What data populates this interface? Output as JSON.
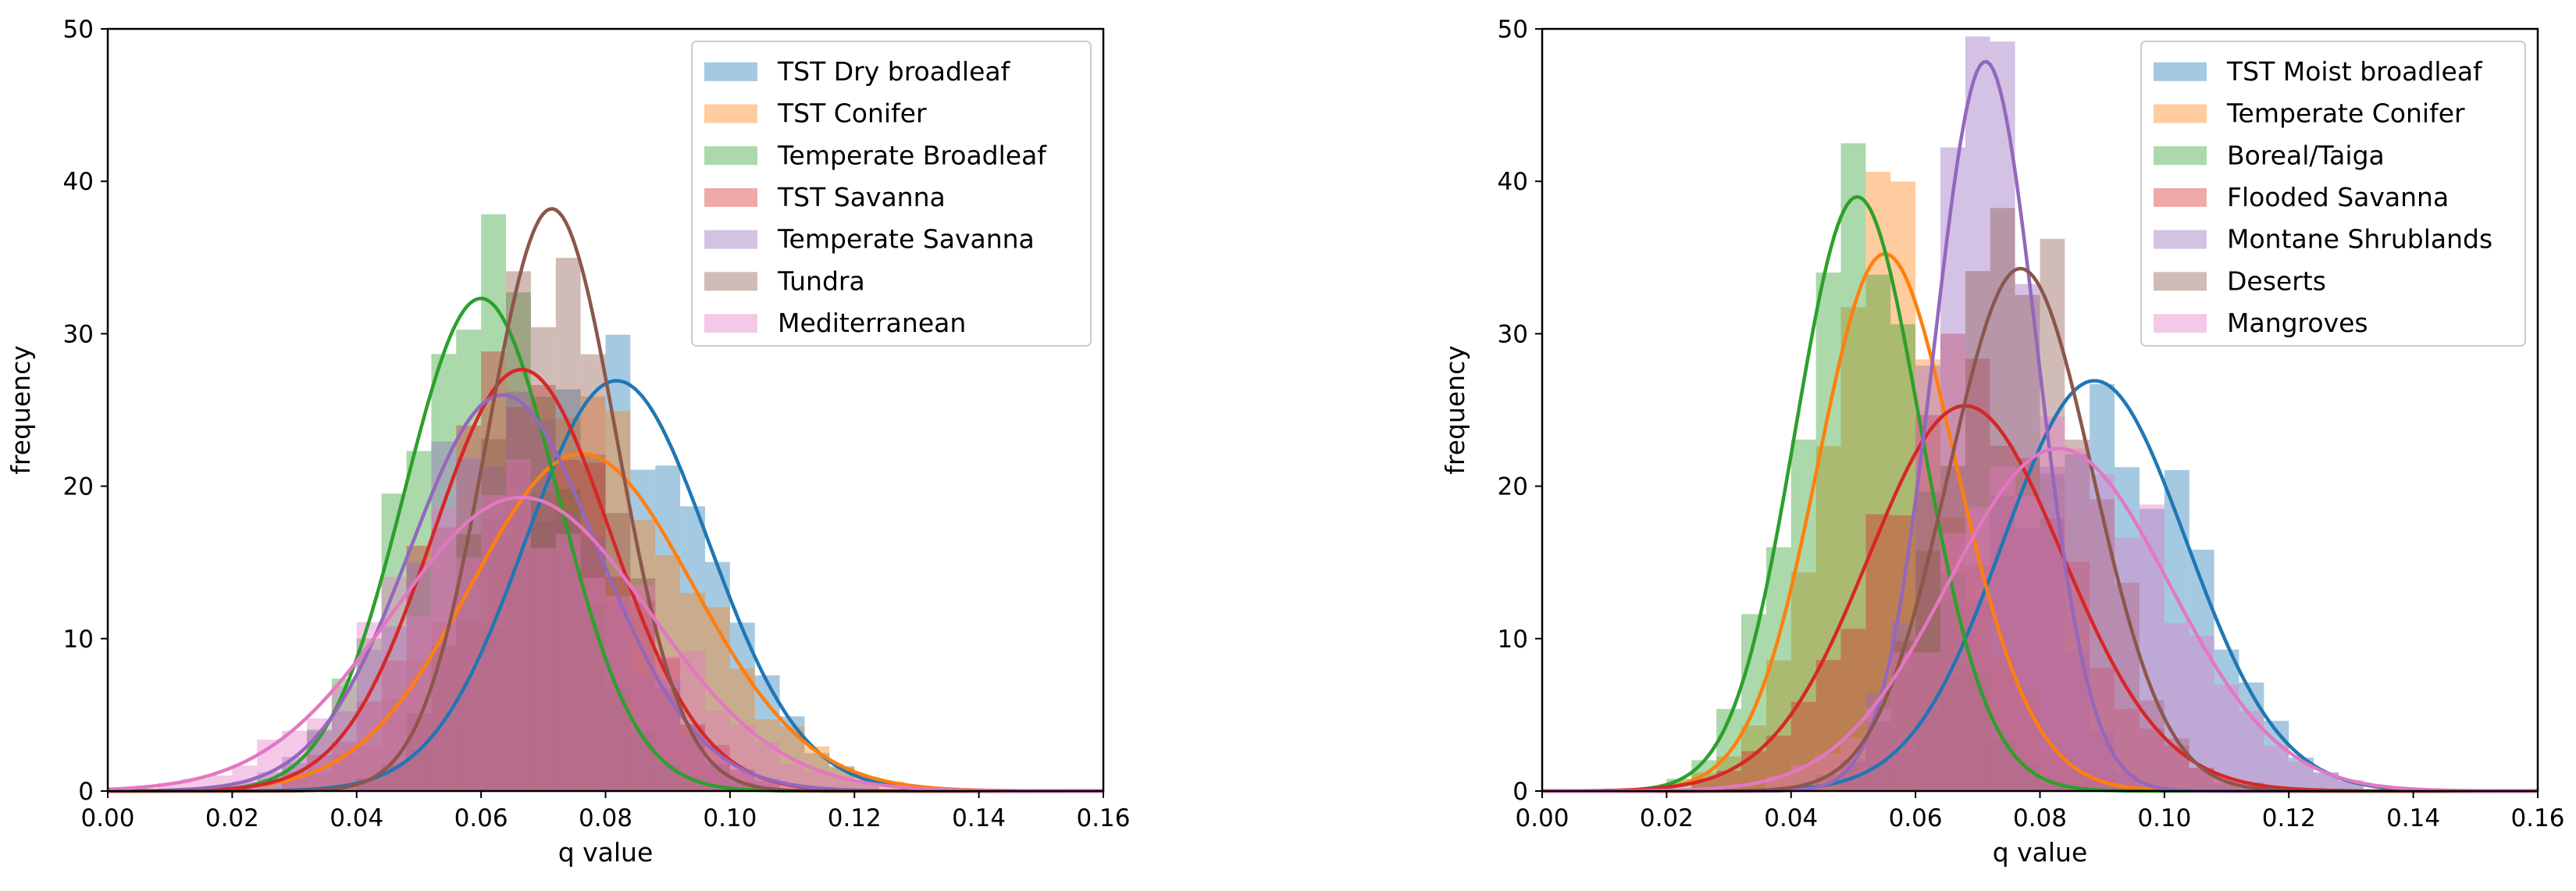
{
  "chart_data": [
    {
      "type": "histogram+kde",
      "xlabel": "q value",
      "ylabel": "frequency",
      "xlim": [
        0.0,
        0.16
      ],
      "ylim": [
        0,
        50
      ],
      "xticks": [
        "0.00",
        "0.02",
        "0.04",
        "0.06",
        "0.08",
        "0.10",
        "0.12",
        "0.14",
        "0.16"
      ],
      "yticks": [
        "0",
        "10",
        "20",
        "30",
        "40",
        "50"
      ],
      "legend_position": "top-right",
      "series": [
        {
          "name": "TST Dry broadleaf",
          "color": "#1f77b4",
          "mean": 0.076,
          "sd": 0.016,
          "skew": 0.5,
          "seed": 11
        },
        {
          "name": "TST Conifer",
          "color": "#ff7f0e",
          "mean": 0.068,
          "sd": 0.02,
          "skew": 0.6,
          "seed": 23
        },
        {
          "name": "Temperate Broadleaf",
          "color": "#2ca02c",
          "mean": 0.056,
          "sd": 0.013,
          "skew": 0.4,
          "seed": 37
        },
        {
          "name": "TST Savanna",
          "color": "#d62728",
          "mean": 0.06,
          "sd": 0.016,
          "skew": 0.6,
          "seed": 41
        },
        {
          "name": "Temperate Savanna",
          "color": "#9467bd",
          "mean": 0.055,
          "sd": 0.018,
          "skew": 0.8,
          "seed": 53
        },
        {
          "name": "Tundra",
          "color": "#8c564b",
          "mean": 0.068,
          "sd": 0.011,
          "skew": 0.4,
          "seed": 67
        },
        {
          "name": "Mediterranean",
          "color": "#e377c2",
          "mean": 0.063,
          "sd": 0.021,
          "skew": 0.2,
          "seed": 79
        }
      ]
    },
    {
      "type": "histogram+kde",
      "xlabel": "q value",
      "ylabel": "frequency",
      "xlim": [
        0.0,
        0.16
      ],
      "ylim": [
        0,
        50
      ],
      "xticks": [
        "0.00",
        "0.02",
        "0.04",
        "0.06",
        "0.08",
        "0.10",
        "0.12",
        "0.14",
        "0.16"
      ],
      "yticks": [
        "0",
        "10",
        "20",
        "30",
        "40",
        "50"
      ],
      "legend_position": "top-right",
      "series": [
        {
          "name": "TST Moist broadleaf",
          "color": "#1f77b4",
          "mean": 0.083,
          "sd": 0.016,
          "skew": 0.5,
          "seed": 13
        },
        {
          "name": "Temperate Conifer",
          "color": "#ff7f0e",
          "mean": 0.048,
          "sd": 0.014,
          "skew": 1.0,
          "seed": 29
        },
        {
          "name": "Boreal/Taiga",
          "color": "#2ca02c",
          "mean": 0.045,
          "sd": 0.012,
          "skew": 0.8,
          "seed": 31
        },
        {
          "name": "Flooded Savanna",
          "color": "#d62728",
          "mean": 0.06,
          "sd": 0.018,
          "skew": 0.7,
          "seed": 43
        },
        {
          "name": "Montane Shrublands",
          "color": "#9467bd",
          "mean": 0.068,
          "sd": 0.009,
          "skew": 0.5,
          "seed": 59
        },
        {
          "name": "Deserts",
          "color": "#8c564b",
          "mean": 0.074,
          "sd": 0.012,
          "skew": 0.3,
          "seed": 61
        },
        {
          "name": "Mangroves",
          "color": "#e377c2",
          "mean": 0.08,
          "sd": 0.018,
          "skew": 0.2,
          "seed": 71
        }
      ]
    }
  ]
}
